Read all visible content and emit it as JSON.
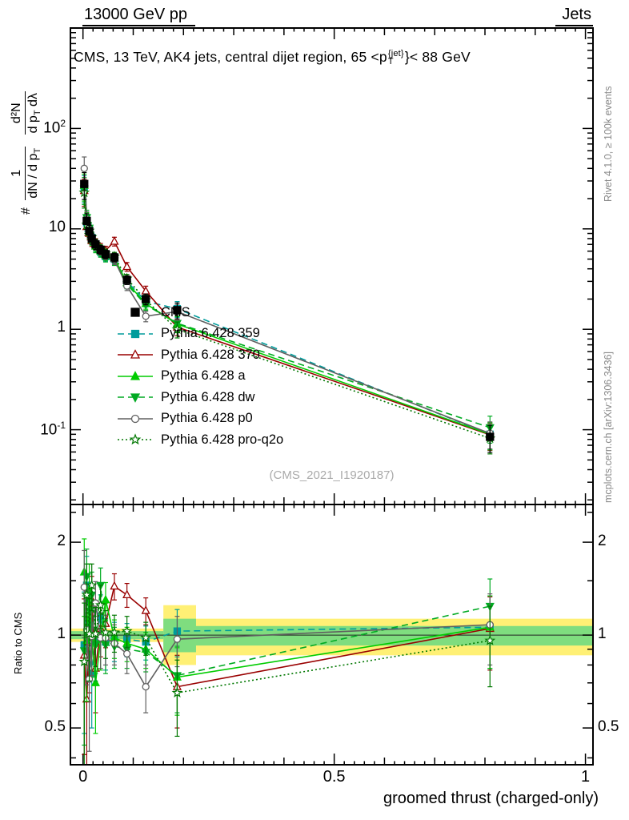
{
  "header": {
    "left": "13000 GeV pp",
    "right": "Jets"
  },
  "plot_title": {
    "prefix": "CMS, 13 TeV, AK4 jets, central dijet region, 65 <p",
    "sup": "{jet}",
    "sub": "T",
    "suffix": "}< 88 GeV"
  },
  "ylabel_main": {
    "hash": "#",
    "frac1_num": "1",
    "frac1_den": "dN / d p",
    "frac1_den_sub": "T",
    "frac2_num": "d²N",
    "frac2_den": "d p",
    "frac2_den_sub": "T",
    "frac2_den2": " dλ"
  },
  "ratio_ylabel": "Ratio to CMS",
  "side_labels": {
    "rivet": "Rivet 4.1.0, ≥ 100k events",
    "mcplots": "mcplots.cern.ch [arXiv:1306.3436]"
  },
  "watermark": "(CMS_2021_I1920187)",
  "xaxis": {
    "title": "groomed thrust (charged-only)"
  },
  "legend": {
    "items": [
      {
        "label": "CMS",
        "marker": "square",
        "color": "#000000",
        "filled": true,
        "line": "none"
      },
      {
        "label": "Pythia 6.428 359",
        "marker": "square",
        "color": "#009C9C",
        "filled": true,
        "line": "dashed"
      },
      {
        "label": "Pythia 6.428 370",
        "marker": "triangle-up",
        "color": "#990000",
        "filled": false,
        "line": "solid"
      },
      {
        "label": "Pythia 6.428 a",
        "marker": "triangle-up",
        "color": "#00CC00",
        "filled": true,
        "line": "solid"
      },
      {
        "label": "Pythia 6.428 dw",
        "marker": "triangle-down",
        "color": "#00AA22",
        "filled": true,
        "line": "dashed"
      },
      {
        "label": "Pythia 6.428 p0",
        "marker": "circle",
        "color": "#606060",
        "filled": false,
        "line": "solid"
      },
      {
        "label": "Pythia 6.428 pro-q2o",
        "marker": "star",
        "color": "#007700",
        "filled": false,
        "line": "dotted"
      }
    ]
  },
  "chart_data": [
    {
      "type": "line",
      "title": "CMS, 13 TeV, AK4 jets, central dijet region, 65 < pT{jet} < 88 GeV",
      "xlabel": "groomed thrust (charged-only)",
      "ylabel": "# 1/(dN/dpT) d²N/(dpT dλ)",
      "yscale": "log",
      "xlim": [
        -0.025,
        1.015
      ],
      "ylim": [
        0.018,
        1000
      ],
      "x": [
        0.0025,
        0.0075,
        0.0125,
        0.0175,
        0.025,
        0.035,
        0.045,
        0.0625,
        0.0875,
        0.125,
        0.1875,
        0.81
      ],
      "yerr_frac": [
        0.3,
        0.18,
        0.14,
        0.12,
        0.11,
        0.1,
        0.1,
        0.1,
        0.1,
        0.12,
        0.18,
        0.3
      ],
      "yticks": [
        {
          "v": 100,
          "base": "10",
          "sup": "2"
        },
        {
          "v": 10,
          "base": "10",
          "sup": ""
        },
        {
          "v": 1,
          "base": "1",
          "sup": ""
        },
        {
          "v": 0.1,
          "base": "10",
          "sup": "-1"
        }
      ],
      "xticks": [
        {
          "v": 0,
          "label": "0"
        },
        {
          "v": 0.5,
          "label": "0.5"
        },
        {
          "v": 1,
          "label": "1"
        }
      ],
      "series": [
        {
          "name": "Pythia 6.428 359",
          "color": "#009C9C",
          "marker": "square",
          "filled": true,
          "line": "dashed",
          "values": [
            26,
            11.5,
            9.8,
            8.2,
            6.8,
            5.9,
            5.3,
            5.0,
            3.0,
            1.9,
            1.6,
            0.09
          ]
        },
        {
          "name": "Pythia 6.428 370",
          "color": "#990000",
          "marker": "triangle-up",
          "filled": false,
          "line": "solid",
          "values": [
            24,
            10.5,
            9.0,
            7.6,
            7.2,
            6.5,
            6.1,
            7.5,
            4.2,
            2.4,
            1.05,
            0.089
          ]
        },
        {
          "name": "Pythia 6.428 a",
          "color": "#00CC00",
          "marker": "triangle-up",
          "filled": true,
          "line": "solid",
          "values": [
            27,
            12.3,
            9.2,
            7.8,
            6.7,
            6.0,
            5.4,
            5.1,
            2.9,
            1.8,
            1.13,
            0.09
          ]
        },
        {
          "name": "Pythia 6.428 dw",
          "color": "#00AA22",
          "marker": "triangle-down",
          "filled": true,
          "line": "dashed",
          "values": [
            25,
            13.0,
            10.2,
            8.1,
            6.5,
            5.8,
            5.2,
            4.8,
            2.8,
            1.75,
            1.15,
            0.105
          ]
        },
        {
          "name": "Pythia 6.428 p0",
          "color": "#606060",
          "marker": "circle",
          "filled": false,
          "line": "solid",
          "values": [
            40,
            12.5,
            9.3,
            7.9,
            6.9,
            6.1,
            5.5,
            4.9,
            2.7,
            1.35,
            1.5,
            0.092
          ]
        },
        {
          "name": "Pythia 6.428 pro-q2o",
          "color": "#007700",
          "marker": "star",
          "filled": false,
          "line": "dotted",
          "values": [
            23,
            11.0,
            9.6,
            8.3,
            7.1,
            6.3,
            5.7,
            5.3,
            3.2,
            1.95,
            1.0,
            0.082
          ]
        },
        {
          "name": "CMS",
          "color": "#000000",
          "marker": "square",
          "filled": true,
          "line": "none",
          "values": [
            28,
            12.0,
            9.5,
            8.0,
            7.0,
            6.2,
            5.6,
            5.2,
            3.1,
            2.0,
            1.55,
            0.085
          ]
        }
      ]
    },
    {
      "type": "line",
      "ylabel": "Ratio to CMS",
      "yscale": "log",
      "ylim": [
        0.38,
        2.65
      ],
      "ref_line": 1,
      "yticks": [
        {
          "v": 2,
          "label": "2"
        },
        {
          "v": 1,
          "label": "1"
        },
        {
          "v": 0.5,
          "label": "0.5"
        }
      ],
      "yticks_minor": [
        0.4,
        0.6,
        0.7,
        0.8,
        0.9,
        1.5,
        2.5
      ],
      "band_colors": {
        "yellow": "#FFF075",
        "green": "#7FDD7F"
      },
      "bands": [
        {
          "x0": -0.025,
          "x1": 0.16,
          "yellow": [
            0.95,
            1.05
          ],
          "green": [
            0.97,
            1.03
          ]
        },
        {
          "x0": 0.16,
          "x1": 0.225,
          "yellow": [
            0.8,
            1.25
          ],
          "green": [
            0.88,
            1.13
          ]
        },
        {
          "x0": 0.225,
          "x1": 1.015,
          "yellow": [
            0.86,
            1.13
          ],
          "green": [
            0.925,
            1.07
          ]
        }
      ],
      "yerr": [
        0.45,
        0.35,
        0.3,
        0.25,
        0.22,
        0.2,
        0.18,
        0.14,
        0.12,
        0.12,
        0.18,
        0.28
      ],
      "series": [
        {
          "name": "Pythia 6.428 359",
          "color": "#009C9C",
          "marker": "square",
          "filled": true,
          "line": "dashed",
          "values": [
            0.93,
            1.45,
            1.03,
            0.75,
            0.97,
            1.15,
            0.95,
            0.96,
            0.97,
            0.95,
            1.03,
            1.06
          ]
        },
        {
          "name": "Pythia 6.428 370",
          "color": "#990000",
          "marker": "triangle-up",
          "filled": false,
          "line": "solid",
          "values": [
            0.86,
            0.62,
            0.95,
            1.3,
            0.78,
            1.05,
            1.09,
            1.44,
            1.35,
            1.2,
            0.68,
            1.05
          ]
        },
        {
          "name": "Pythia 6.428 a",
          "color": "#00CC00",
          "marker": "triangle-up",
          "filled": true,
          "line": "solid",
          "values": [
            1.6,
            0.96,
            1.4,
            0.98,
            0.7,
            0.97,
            1.3,
            0.98,
            0.94,
            0.9,
            0.73,
            1.06
          ]
        },
        {
          "name": "Pythia 6.428 dw",
          "color": "#00AA22",
          "marker": "triangle-down",
          "filled": true,
          "line": "dashed",
          "values": [
            0.89,
            1.55,
            1.07,
            1.35,
            0.93,
            1.45,
            0.93,
            0.92,
            0.9,
            0.88,
            0.74,
            1.24
          ]
        },
        {
          "name": "Pythia 6.428 p0",
          "color": "#606060",
          "marker": "circle",
          "filled": false,
          "line": "solid",
          "values": [
            1.43,
            1.04,
            0.72,
            0.99,
            1.27,
            0.98,
            0.98,
            0.94,
            0.87,
            0.68,
            0.97,
            1.08
          ]
        },
        {
          "name": "Pythia 6.428 pro-q2o",
          "color": "#007700",
          "marker": "star",
          "filled": false,
          "line": "dotted",
          "values": [
            0.82,
            1.35,
            1.01,
            1.45,
            1.01,
            1.25,
            1.02,
            1.02,
            1.03,
            0.98,
            0.65,
            0.96
          ]
        }
      ]
    }
  ]
}
